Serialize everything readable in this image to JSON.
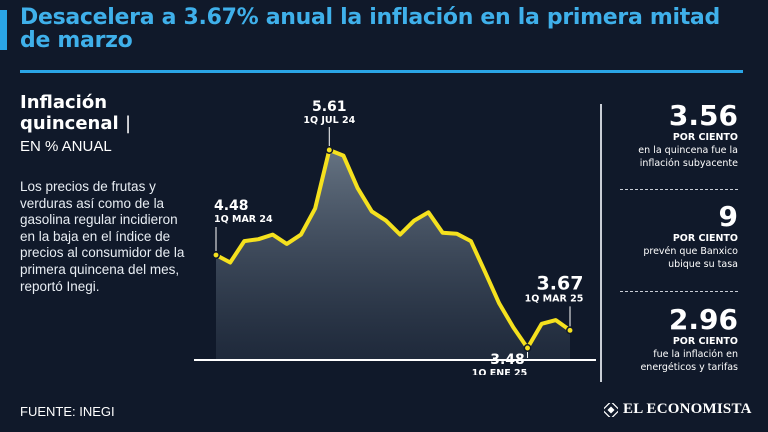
{
  "headline": "Desacelera a 3.67% anual la inflación en la primera mitad de marzo",
  "subtitle_main": "Inflación quincenal",
  "subtitle_sep": "|",
  "subtitle_unit": "EN % ANUAL",
  "body": "Los precios de frutas y verduras así como de la gasolina regular incidieron en la baja en el índice de precios al consumidor de la primera quincena del mes, reportó Inegi.",
  "source": "FUENTE: INEGI",
  "brand": "EL ECONOMISTA",
  "colors": {
    "background": "#10192a",
    "accent": "#2aa5e6",
    "line": "#f5e11e",
    "text": "#ffffff"
  },
  "chart_data": {
    "type": "line",
    "y_unit": "% anual",
    "values": [
      4.48,
      4.4,
      4.63,
      4.65,
      4.7,
      4.6,
      4.7,
      4.98,
      5.61,
      5.55,
      5.2,
      4.95,
      4.85,
      4.7,
      4.85,
      4.94,
      4.72,
      4.71,
      4.63,
      4.3,
      3.96,
      3.7,
      3.48,
      3.74,
      3.78,
      3.67
    ],
    "annotations": [
      {
        "index": 0,
        "value_label": "4.48",
        "period": "1Q MAR 24"
      },
      {
        "index": 8,
        "value_label": "5.61",
        "period": "1Q JUL 24"
      },
      {
        "index": 22,
        "value_label": "3.48",
        "period": "1Q ENE 25"
      },
      {
        "index": 25,
        "value_label": "3.67",
        "period": "1Q MAR 25"
      }
    ]
  },
  "stats": [
    {
      "value": "3.56",
      "unit": "POR CIENTO",
      "desc_line1": "en la quincena fue la",
      "desc_line2": "inflación subyacente"
    },
    {
      "value": "9",
      "unit": "POR CIENTO",
      "desc_line1": "prevén que Banxico",
      "desc_line2": "ubique su tasa"
    },
    {
      "value": "2.96",
      "unit": "POR CIENTO",
      "desc_line1": "fue la inflación en",
      "desc_line2": "energéticos y tarifas"
    }
  ]
}
